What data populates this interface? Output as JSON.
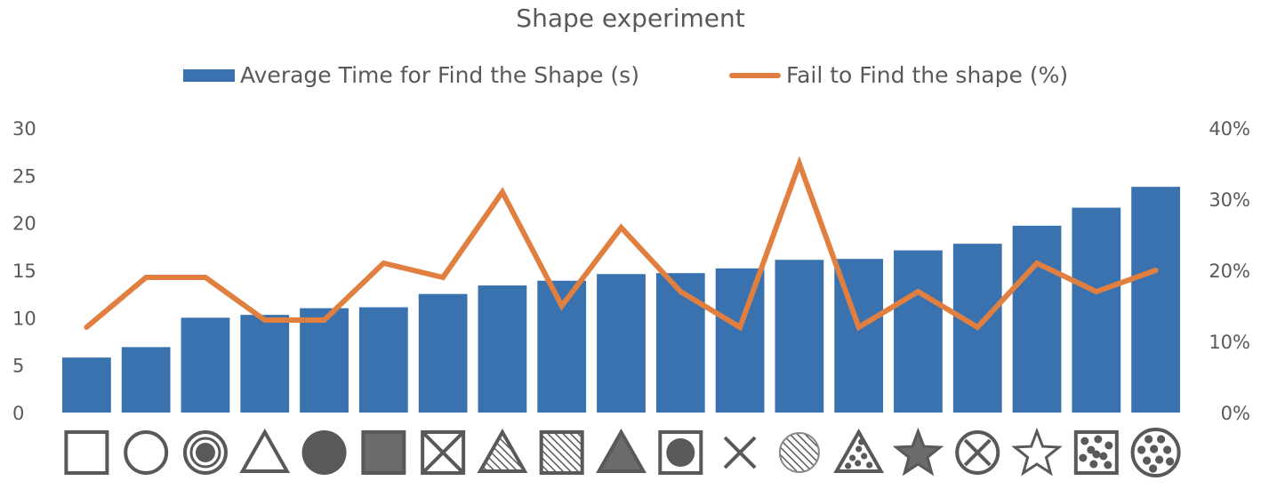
{
  "chart_data": {
    "type": "bar",
    "title": "Shape experiment",
    "categories": [
      "square",
      "circle",
      "bullseye-circle",
      "triangle",
      "filled-circle",
      "filled-square",
      "crossed-square",
      "hatched-triangle",
      "hatched-square",
      "filled-triangle",
      "square-with-dot",
      "x-cross",
      "hatched-circle",
      "dotted-triangle",
      "filled-star",
      "crossed-circle",
      "star",
      "dotted-square",
      "dotted-circle"
    ],
    "series": [
      {
        "name": "Average Time for Find the Shape (s)",
        "type": "bar",
        "axis": "left",
        "color": "#3A72AF",
        "values": [
          5.8,
          6.9,
          10,
          10.3,
          11,
          11.1,
          12.5,
          13.4,
          13.9,
          14.6,
          14.7,
          15.2,
          16.1,
          16.2,
          17.1,
          17.8,
          19.7,
          21.6,
          23.8
        ]
      },
      {
        "name": "Fail to Find the shape (%)",
        "type": "line",
        "axis": "right",
        "color": "#E07F3F",
        "values": [
          12,
          19,
          19,
          13,
          13,
          21,
          19,
          31,
          15,
          26,
          17,
          12,
          35,
          12,
          17,
          12,
          21,
          17,
          20
        ]
      }
    ],
    "y_left": {
      "ylim": [
        0,
        30
      ],
      "ticks": [
        "0",
        "5",
        "10",
        "15",
        "20",
        "25",
        "30"
      ]
    },
    "y_right": {
      "ylim": [
        0,
        40
      ],
      "ticks": [
        "0%",
        "10%",
        "20%",
        "30%",
        "40%"
      ]
    },
    "xlabel": "",
    "ylabel": "",
    "grid": false,
    "legend": "top",
    "icon_color": "#595959"
  }
}
